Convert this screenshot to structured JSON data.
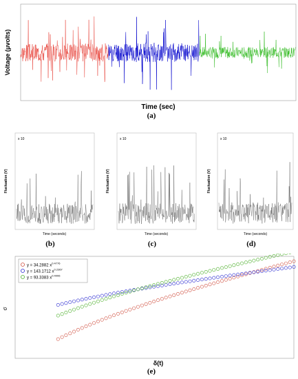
{
  "figure": {
    "captions": {
      "a": "(a)",
      "b": "(b)",
      "c": "(c)",
      "d": "(d)",
      "e": "(e)"
    }
  },
  "chart_data": [
    {
      "id": "a",
      "type": "line",
      "xlabel": "Time (sec)",
      "ylabel": "Voltage (μvolts)",
      "series": [
        {
          "color": "#e8433a",
          "x_range": [
            0,
            150
          ],
          "amplitude": 0.75,
          "seed": 3
        },
        {
          "color": "#0000cc",
          "x_range": [
            150,
            305
          ],
          "amplitude": 0.8,
          "seed": 11
        },
        {
          "color": "#33bb22",
          "x_range": [
            305,
            470
          ],
          "amplitude": 0.45,
          "seed": 7
        }
      ],
      "xlim": [
        0,
        470
      ],
      "grid": false
    },
    {
      "id": "b",
      "type": "line",
      "ylabel": "Fluctuation (V)",
      "xlabel": "Time (seconds)",
      "legend_label": "x 10",
      "series": [
        {
          "color": "#444444",
          "seed": 21,
          "amplitude": 0.7
        }
      ]
    },
    {
      "id": "c",
      "type": "line",
      "ylabel": "Fluctuation (V)",
      "xlabel": "Time (seconds)",
      "legend_label": "x 10",
      "series": [
        {
          "color": "#444444",
          "seed": 31,
          "amplitude": 0.72
        }
      ]
    },
    {
      "id": "d",
      "type": "line",
      "ylabel": "Fluctuation (V)",
      "xlabel": "Time (seconds)",
      "legend_label": "x 10",
      "series": [
        {
          "color": "#444444",
          "seed": 41,
          "amplitude": 0.75
        }
      ]
    },
    {
      "id": "e",
      "type": "scatter",
      "xlabel": "δ(t)",
      "ylabel": "σ",
      "xscale": "log",
      "yscale": "log",
      "legend": [
        {
          "text": "y = 34.2882 x",
          "exp": "0.4776",
          "color": "#d05040"
        },
        {
          "text": "y = 143.1712 x",
          "exp": "0.2367",
          "color": "#2a2ad0"
        },
        {
          "text": "y = 93.3383 x",
          "exp": "0.4006",
          "color": "#4caf2a"
        }
      ],
      "legend_position": "top-left"
    }
  ]
}
